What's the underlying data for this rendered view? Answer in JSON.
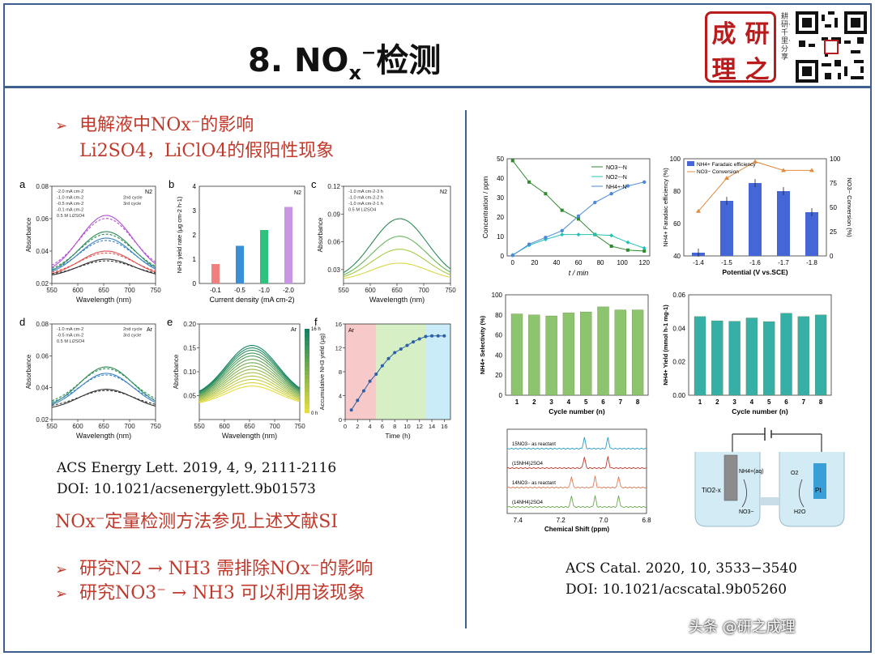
{
  "title": {
    "main": "8. NO",
    "sub": "x",
    "sup": "−",
    "tail": "检测"
  },
  "seal_chars": [
    "成",
    "研",
    "理",
    "之"
  ],
  "motto": "耕研·千里·分享",
  "bullets": {
    "b1": "电解液中NOx⁻的影响",
    "b1_line2": "Li2SO4，LiClO4的假阳性现象",
    "b2": "研究N2 → NH3 需排除NOx⁻的影响",
    "b3": "研究NO3⁻ → NH3 可以利用该现象"
  },
  "note": "NOx⁻定量检测方法参见上述文献SI",
  "refs": {
    "left_1": "ACS Energy Lett. 2019, 4, 9, 2111-2116",
    "left_2": "DOI: 10.1021/acsenergylett.9b01573",
    "right_1": "ACS Catal. 2020, 10, 3533−3540",
    "right_2": "DOI: 10.1021/acscatal.9b05260"
  },
  "watermark": "头条 @研之成理",
  "colors": {
    "red": "#c0392b",
    "frame": "#3f5f8f",
    "seal": "#b91c1c"
  },
  "chart_data": [
    {
      "panel": "a",
      "type": "line",
      "xlabel": "Wavelength (nm)",
      "ylabel": "Absorbance",
      "xlim": [
        550,
        750
      ],
      "ylim": [
        0.02,
        0.08
      ],
      "tag": "N2",
      "legend": [
        "-2.0 mA cm-2",
        "-1.0 mA cm-2",
        "-0.5 mA cm-2",
        "-0.1 mA cm-2",
        "0.5 M Li2SO4",
        "2nd cycle",
        "3rd cycle"
      ],
      "series": [
        {
          "name": "-2.0 mA cm-2",
          "color": "#b34fd1",
          "peak": 0.062
        },
        {
          "name": "-1.0 mA cm-2",
          "color": "#2e8b57",
          "peak": 0.052
        },
        {
          "name": "-0.5 mA cm-2",
          "color": "#3b82c4",
          "peak": 0.048
        },
        {
          "name": "-0.1 mA cm-2",
          "color": "#e04f4f",
          "peak": 0.04
        },
        {
          "name": "0.5 M Li2SO4",
          "color": "#333333",
          "peak": 0.035
        }
      ]
    },
    {
      "panel": "b",
      "type": "bar",
      "xlabel": "Current density (mA cm-2)",
      "ylabel": "NH3 yield rate (μg cm-2 h-1)",
      "ylim": [
        0,
        4
      ],
      "tag": "N2",
      "categories": [
        "-0.1",
        "-0.5",
        "-1.0",
        "-2.0"
      ],
      "values": [
        0.8,
        1.55,
        2.2,
        3.15
      ],
      "colors": [
        "#f07f7f",
        "#3b8fd9",
        "#2ec27e",
        "#c996e6"
      ]
    },
    {
      "panel": "c",
      "type": "line",
      "xlabel": "Wavelength (nm)",
      "ylabel": "Absorbance",
      "xlim": [
        550,
        750
      ],
      "ylim": [
        0.015,
        0.12
      ],
      "tag": "N2",
      "legend": [
        "-1.0 mA cm-2-3 h",
        "-1.0 mA cm-2-2 h",
        "-1.0 mA cm-2-1 h",
        "0.5 M Li2SO4"
      ],
      "series": [
        {
          "name": "-1.0 mA cm-2-3 h",
          "color": "#2e8b57",
          "peak": 0.085
        },
        {
          "name": "-1.0 mA cm-2-2 h",
          "color": "#66b85a",
          "peak": 0.066
        },
        {
          "name": "-1.0 mA cm-2-1 h",
          "color": "#a5cc4a",
          "peak": 0.052
        },
        {
          "name": "0.5 M Li2SO4",
          "color": "#d8d84a",
          "peak": 0.037
        }
      ]
    },
    {
      "panel": "d",
      "type": "line",
      "xlabel": "Wavelength (nm)",
      "ylabel": "Absorbance",
      "xlim": [
        550,
        750
      ],
      "ylim": [
        0.02,
        0.08
      ],
      "tag": "Ar",
      "legend": [
        "-1.0 mA cm-2",
        "-0.5 mA cm-2",
        "0.5 M Li2SO4",
        "2nd cycle",
        "3rd cycle"
      ],
      "series": [
        {
          "name": "-1.0 mA cm-2",
          "color": "#2e8b57",
          "peak": 0.053
        },
        {
          "name": "-0.5 mA cm-2",
          "color": "#3b82c4",
          "peak": 0.049
        },
        {
          "name": "0.5 M Li2SO4",
          "color": "#333333",
          "peak": 0.039
        }
      ]
    },
    {
      "panel": "e",
      "type": "line",
      "xlabel": "Wavelength (nm)",
      "ylabel": "Absorbance",
      "xlim": [
        550,
        750
      ],
      "ylim": [
        0.0,
        0.2
      ],
      "tag": "Ar",
      "colorbar": [
        "16 h",
        "0 h"
      ],
      "peaks": [
        0.07,
        0.077,
        0.084,
        0.091,
        0.098,
        0.105,
        0.112,
        0.119,
        0.126,
        0.133,
        0.139,
        0.145,
        0.15,
        0.155
      ]
    },
    {
      "panel": "f",
      "type": "scatter",
      "xlabel": "Time (h)",
      "ylabel": "Accumulative NH3 yield (μg)",
      "xlim": [
        0,
        17
      ],
      "ylim": [
        0,
        16
      ],
      "tag": "Ar",
      "x": [
        1,
        2,
        3,
        4,
        5,
        6,
        7,
        8,
        9,
        10,
        11,
        12,
        13,
        14,
        15,
        16
      ],
      "y": [
        1.6,
        3.2,
        4.8,
        6.4,
        7.6,
        9,
        10.2,
        11.2,
        11.8,
        12.4,
        13.0,
        13.5,
        13.9,
        14.0,
        14.0,
        14.0
      ],
      "regions": [
        {
          "from": 0,
          "to": 5,
          "color": "#f8c9c9"
        },
        {
          "from": 5,
          "to": 13,
          "color": "#d6efc4"
        },
        {
          "from": 13,
          "to": 17,
          "color": "#c9ecf8"
        }
      ]
    },
    {
      "panel": "conc",
      "type": "line",
      "xlabel": "t / min",
      "ylabel": "Concentration / ppm",
      "xlim": [
        -5,
        125
      ],
      "ylim": [
        0,
        50
      ],
      "x": [
        0,
        15,
        30,
        45,
        60,
        75,
        90,
        105,
        120
      ],
      "series": [
        {
          "name": "NO3−-N",
          "color": "#2e8b2e",
          "values": [
            49,
            38,
            32,
            23.5,
            19,
            11,
            5,
            3,
            2.5
          ]
        },
        {
          "name": "NO2−-N",
          "color": "#22c1b8",
          "values": [
            0.5,
            5.5,
            8.5,
            11,
            11,
            11,
            10.5,
            7,
            4
          ]
        },
        {
          "name": "NH4+-N",
          "color": "#4a8ad8",
          "values": [
            0.3,
            6,
            9.5,
            13,
            20.5,
            27.5,
            32,
            36,
            38
          ]
        }
      ]
    },
    {
      "panel": "fe",
      "type": "bar",
      "xlabel": "Potential (V vs.SCE)",
      "ylabel": "NH4+ Faradaic efficiency (%)",
      "ylabel2": "NO3− Conversion (%)",
      "ylim": [
        40,
        100
      ],
      "categories": [
        "-1.4",
        "-1.5",
        "-1.6",
        "-1.7",
        "-1.8"
      ],
      "values": [
        42,
        74,
        85,
        80,
        67
      ],
      "conversion": [
        46,
        80,
        97,
        88,
        88
      ],
      "legend": [
        "NH4+ Faradaic efficiency",
        "NO3− Conversion"
      ],
      "yticks": [
        40,
        60,
        80,
        100
      ],
      "y2ticks": [
        0,
        25,
        50,
        75,
        100
      ]
    },
    {
      "panel": "sel",
      "type": "bar",
      "xlabel": "Cycle number (n)",
      "ylabel": "NH4+ Selectivity (%)",
      "ylim": [
        0,
        100
      ],
      "color": "#8dc46e",
      "categories": [
        "1",
        "2",
        "3",
        "4",
        "5",
        "6",
        "7",
        "8"
      ],
      "values": [
        81,
        80,
        79,
        82,
        83,
        88,
        85,
        85
      ]
    },
    {
      "panel": "yield",
      "type": "bar",
      "xlabel": "Cycle number (n)",
      "ylabel": "NH4+ Yield (mmol h-1 mg-1)",
      "ylim": [
        0,
        0.06
      ],
      "color": "#36b0a6",
      "categories": [
        "1",
        "2",
        "3",
        "4",
        "5",
        "6",
        "7",
        "8"
      ],
      "values": [
        0.047,
        0.0445,
        0.0442,
        0.0462,
        0.044,
        0.049,
        0.047,
        0.048
      ]
    },
    {
      "panel": "nmr",
      "type": "line",
      "xlabel": "Chemical Shift (ppm)",
      "xlim": [
        7.45,
        6.8
      ],
      "xticks": [
        7.4,
        7.2,
        7.0,
        6.8
      ],
      "labels": [
        "15NO3− as reactant",
        "(15NH4)2SO4",
        "14NO3− as reactant",
        "(14NH4)2SO4"
      ],
      "colors": [
        "#2a9bc2",
        "#c0392b",
        "#e07a55",
        "#6aa84f"
      ]
    },
    {
      "panel": "cell",
      "type": "table",
      "labels": [
        "TiO2-x",
        "NH4+(aq)",
        "NO3−",
        "O2",
        "Pt",
        "H2O"
      ]
    }
  ]
}
